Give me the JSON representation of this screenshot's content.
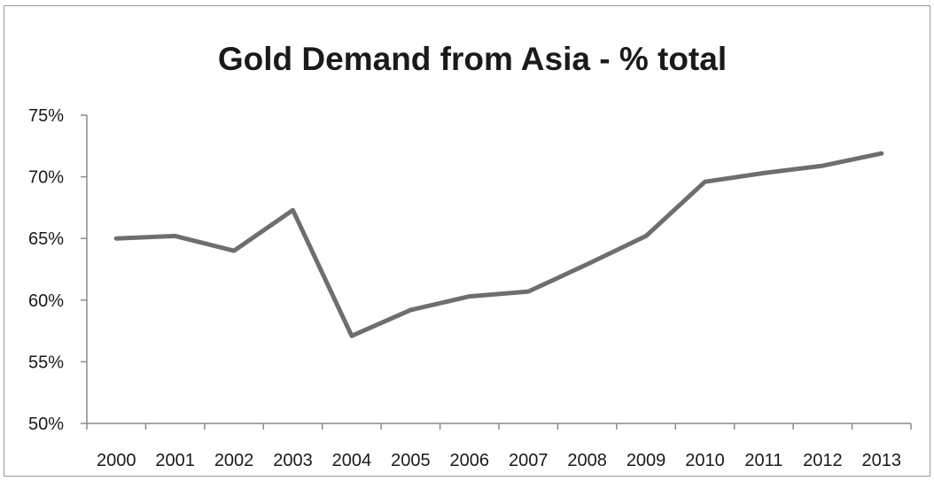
{
  "chart_data": {
    "type": "line",
    "title": "Gold Demand from Asia - % total",
    "xlabel": "",
    "ylabel": "",
    "categories": [
      "2000",
      "2001",
      "2002",
      "2003",
      "2004",
      "2005",
      "2006",
      "2007",
      "2008",
      "2009",
      "2010",
      "2011",
      "2012",
      "2013"
    ],
    "series": [
      {
        "values": [
          65.0,
          65.2,
          64.0,
          67.3,
          57.1,
          59.2,
          60.3,
          60.7,
          62.9,
          65.2,
          69.6,
          70.3,
          70.9,
          71.9
        ]
      }
    ],
    "ylim": [
      50,
      75
    ],
    "yticks": [
      50,
      55,
      60,
      65,
      70,
      75
    ],
    "ytick_labels": [
      "50%",
      "55%",
      "60%",
      "65%",
      "70%",
      "75%"
    ],
    "grid": false,
    "legend": "none",
    "colors": {
      "line": "#6e6e6e",
      "axis": "#8c8c8c",
      "text": "#1a1a1a",
      "border": "#9a9a9a"
    }
  }
}
